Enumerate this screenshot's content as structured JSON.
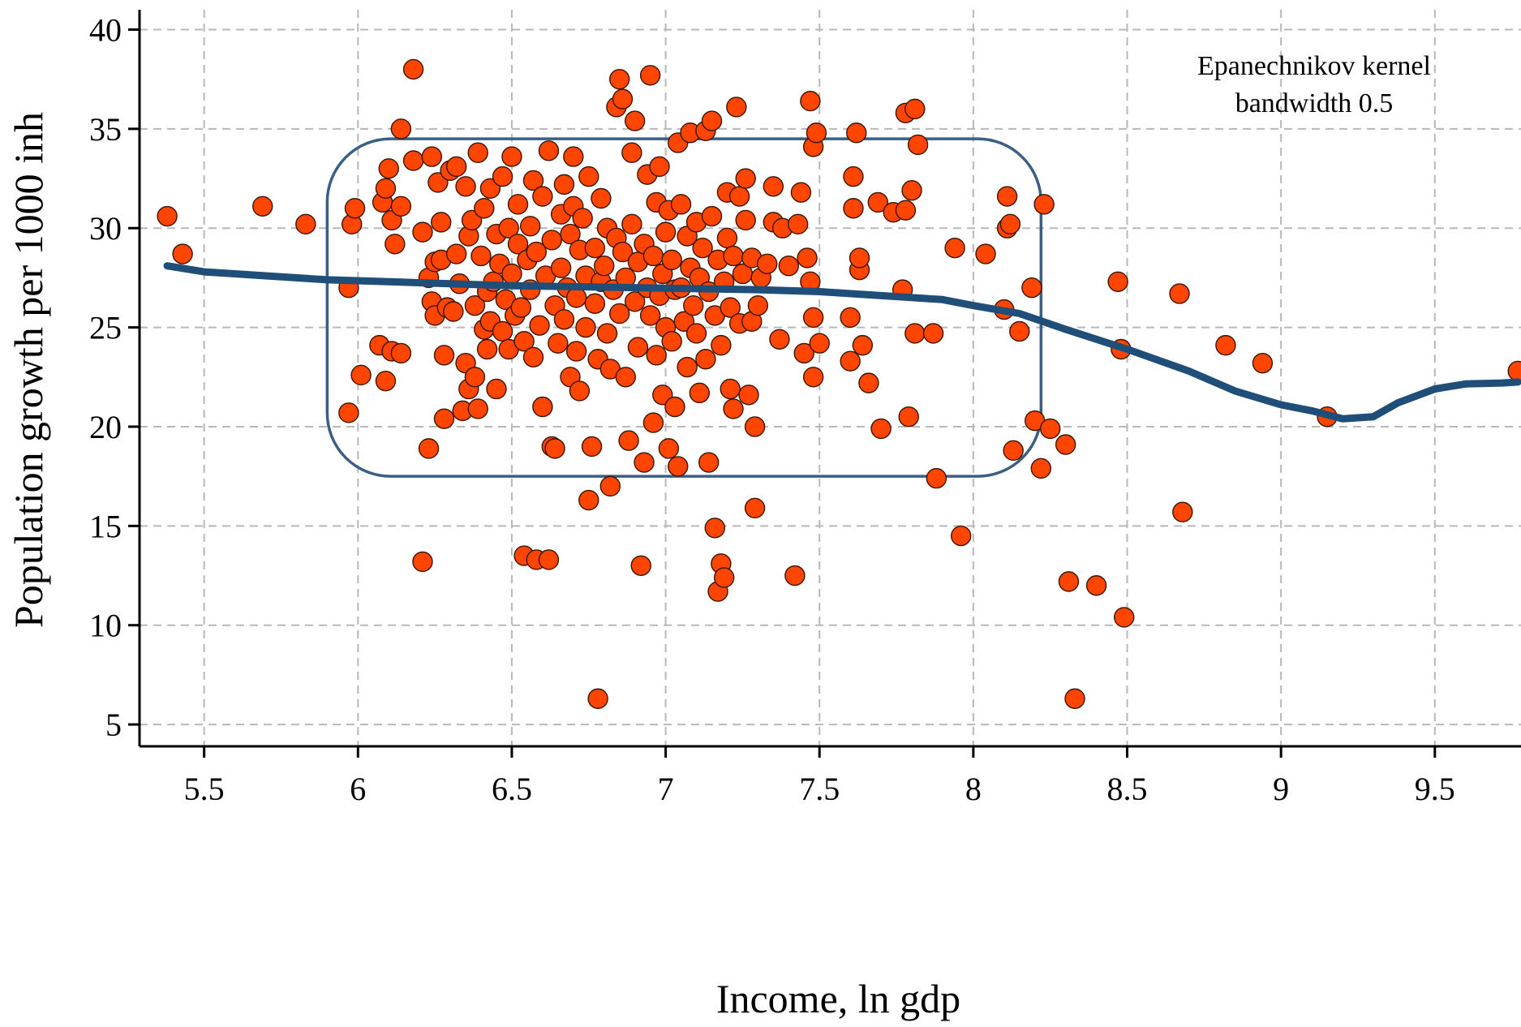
{
  "chart_data": {
    "type": "scatter",
    "title": "",
    "xlabel": "Income, ln gdp",
    "ylabel": "Population growth per 1000 inh",
    "xlim": [
      5.29,
      9.78
    ],
    "ylim": [
      3.9,
      41.0
    ],
    "x_ticks": [
      5.5,
      6,
      6.5,
      7,
      7.5,
      8,
      8.5,
      9,
      9.5
    ],
    "x_tick_labels": [
      "5.5",
      "6",
      "6.5",
      "7",
      "7.5",
      "8",
      "8.5",
      "9",
      "9.5"
    ],
    "y_ticks": [
      5,
      10,
      15,
      20,
      25,
      30,
      35,
      40
    ],
    "y_tick_labels": [
      "5",
      "10",
      "15",
      "20",
      "25",
      "30",
      "35",
      "40"
    ],
    "grid": true,
    "legend": "none",
    "annotation": {
      "lines": [
        "Epanechnikov kernel",
        "bandwidth 0.5"
      ],
      "placement": "top-right"
    },
    "highlight_region": {
      "x": [
        5.9,
        8.22
      ],
      "y": [
        17.5,
        34.5
      ],
      "shape": "rounded-rectangle"
    },
    "colors": {
      "points_fill": "#FF4500",
      "points_stroke": "#3a1505",
      "smooth_line": "#1F4E79",
      "highlight_box": "#3B5E85",
      "grid": "#b8b8b8",
      "axis": "#000000"
    },
    "series": [
      {
        "type": "scatter",
        "points": [
          [
            5.38,
            30.6
          ],
          [
            5.43,
            28.7
          ],
          [
            5.69,
            31.1
          ],
          [
            5.83,
            30.2
          ],
          [
            5.97,
            27.0
          ],
          [
            5.97,
            20.7
          ],
          [
            5.98,
            30.2
          ],
          [
            5.99,
            31.0
          ],
          [
            6.01,
            22.6
          ],
          [
            6.07,
            24.1
          ],
          [
            6.08,
            31.3
          ],
          [
            6.09,
            32.0
          ],
          [
            6.09,
            22.3
          ],
          [
            6.1,
            33.0
          ],
          [
            6.11,
            23.8
          ],
          [
            6.11,
            30.4
          ],
          [
            6.12,
            29.2
          ],
          [
            6.14,
            23.7
          ],
          [
            6.14,
            31.1
          ],
          [
            6.14,
            35.0
          ],
          [
            6.18,
            38.0
          ],
          [
            6.18,
            33.4
          ],
          [
            6.21,
            13.2
          ],
          [
            6.21,
            29.8
          ],
          [
            6.23,
            18.9
          ],
          [
            6.23,
            27.5
          ],
          [
            6.24,
            33.6
          ],
          [
            6.24,
            26.3
          ],
          [
            6.25,
            25.6
          ],
          [
            6.25,
            28.3
          ],
          [
            6.26,
            32.3
          ],
          [
            6.27,
            28.4
          ],
          [
            6.27,
            30.3
          ],
          [
            6.28,
            23.6
          ],
          [
            6.28,
            20.4
          ],
          [
            6.29,
            26.0
          ],
          [
            6.3,
            32.9
          ],
          [
            6.31,
            25.8
          ],
          [
            6.32,
            33.1
          ],
          [
            6.32,
            28.7
          ],
          [
            6.33,
            27.2
          ],
          [
            6.34,
            20.8
          ],
          [
            6.35,
            23.2
          ],
          [
            6.35,
            32.1
          ],
          [
            6.36,
            21.9
          ],
          [
            6.36,
            29.6
          ],
          [
            6.37,
            30.4
          ],
          [
            6.38,
            26.1
          ],
          [
            6.38,
            22.5
          ],
          [
            6.39,
            33.8
          ],
          [
            6.39,
            20.9
          ],
          [
            6.4,
            28.6
          ],
          [
            6.41,
            24.9
          ],
          [
            6.41,
            31.0
          ],
          [
            6.42,
            26.8
          ],
          [
            6.42,
            23.9
          ],
          [
            6.43,
            32.0
          ],
          [
            6.43,
            25.3
          ],
          [
            6.44,
            27.3
          ],
          [
            6.45,
            29.7
          ],
          [
            6.45,
            21.9
          ],
          [
            6.46,
            28.2
          ],
          [
            6.47,
            32.6
          ],
          [
            6.47,
            24.8
          ],
          [
            6.48,
            26.4
          ],
          [
            6.49,
            30.0
          ],
          [
            6.49,
            23.9
          ],
          [
            6.5,
            33.6
          ],
          [
            6.5,
            27.7
          ],
          [
            6.51,
            25.6
          ],
          [
            6.52,
            29.2
          ],
          [
            6.52,
            31.2
          ],
          [
            6.53,
            26.0
          ],
          [
            6.54,
            24.3
          ],
          [
            6.54,
            13.5
          ],
          [
            6.55,
            28.4
          ],
          [
            6.56,
            30.1
          ],
          [
            6.56,
            26.9
          ],
          [
            6.57,
            32.4
          ],
          [
            6.57,
            23.5
          ],
          [
            6.58,
            13.3
          ],
          [
            6.58,
            28.8
          ],
          [
            6.59,
            25.1
          ],
          [
            6.6,
            21.0
          ],
          [
            6.6,
            31.6
          ],
          [
            6.61,
            27.6
          ],
          [
            6.62,
            13.3
          ],
          [
            6.62,
            33.9
          ],
          [
            6.63,
            19.0
          ],
          [
            6.63,
            29.4
          ],
          [
            6.64,
            26.1
          ],
          [
            6.64,
            18.9
          ],
          [
            6.65,
            24.2
          ],
          [
            6.66,
            30.7
          ],
          [
            6.66,
            28.0
          ],
          [
            6.67,
            32.2
          ],
          [
            6.67,
            25.4
          ],
          [
            6.68,
            27.0
          ],
          [
            6.69,
            29.7
          ],
          [
            6.69,
            22.5
          ],
          [
            6.7,
            33.6
          ],
          [
            6.7,
            31.1
          ],
          [
            6.71,
            26.5
          ],
          [
            6.71,
            23.8
          ],
          [
            6.72,
            28.9
          ],
          [
            6.72,
            21.8
          ],
          [
            6.73,
            30.5
          ],
          [
            6.74,
            25.0
          ],
          [
            6.74,
            27.6
          ],
          [
            6.75,
            32.6
          ],
          [
            6.75,
            16.3
          ],
          [
            6.76,
            19.0
          ],
          [
            6.77,
            29.0
          ],
          [
            6.77,
            26.2
          ],
          [
            6.78,
            6.3
          ],
          [
            6.78,
            23.4
          ],
          [
            6.79,
            31.5
          ],
          [
            6.79,
            27.3
          ],
          [
            6.8,
            28.1
          ],
          [
            6.81,
            24.7
          ],
          [
            6.81,
            30.0
          ],
          [
            6.82,
            17.0
          ],
          [
            6.82,
            22.9
          ],
          [
            6.83,
            26.9
          ],
          [
            6.84,
            36.1
          ],
          [
            6.84,
            29.5
          ],
          [
            6.85,
            37.5
          ],
          [
            6.85,
            25.7
          ],
          [
            6.86,
            28.8
          ],
          [
            6.86,
            36.5
          ],
          [
            6.87,
            27.5
          ],
          [
            6.87,
            22.5
          ],
          [
            6.88,
            19.3
          ],
          [
            6.89,
            33.8
          ],
          [
            6.89,
            30.2
          ],
          [
            6.9,
            35.4
          ],
          [
            6.9,
            26.3
          ],
          [
            6.91,
            28.3
          ],
          [
            6.91,
            24.0
          ],
          [
            6.92,
            13.0
          ],
          [
            6.93,
            29.2
          ],
          [
            6.93,
            18.2
          ],
          [
            6.94,
            27.0
          ],
          [
            6.94,
            32.7
          ],
          [
            6.95,
            37.7
          ],
          [
            6.95,
            25.6
          ],
          [
            6.96,
            20.2
          ],
          [
            6.96,
            28.6
          ],
          [
            6.97,
            31.3
          ],
          [
            6.97,
            23.6
          ],
          [
            6.98,
            26.6
          ],
          [
            6.98,
            33.1
          ],
          [
            6.99,
            27.7
          ],
          [
            6.99,
            21.6
          ],
          [
            7.0,
            29.8
          ],
          [
            7.0,
            25.0
          ],
          [
            7.01,
            30.9
          ],
          [
            7.01,
            18.9
          ],
          [
            7.02,
            24.3
          ],
          [
            7.02,
            28.4
          ],
          [
            7.03,
            21.0
          ],
          [
            7.03,
            26.9
          ],
          [
            7.04,
            18.0
          ],
          [
            7.04,
            34.3
          ],
          [
            7.05,
            31.2
          ],
          [
            7.05,
            27.0
          ],
          [
            7.06,
            25.3
          ],
          [
            7.07,
            29.6
          ],
          [
            7.07,
            23.0
          ],
          [
            7.08,
            34.8
          ],
          [
            7.08,
            28.0
          ],
          [
            7.09,
            26.1
          ],
          [
            7.1,
            30.3
          ],
          [
            7.1,
            24.7
          ],
          [
            7.11,
            21.7
          ],
          [
            7.11,
            27.5
          ],
          [
            7.12,
            29.0
          ],
          [
            7.13,
            23.4
          ],
          [
            7.13,
            34.9
          ],
          [
            7.14,
            26.8
          ],
          [
            7.14,
            18.2
          ],
          [
            7.15,
            30.6
          ],
          [
            7.15,
            35.4
          ],
          [
            7.16,
            25.6
          ],
          [
            7.16,
            14.9
          ],
          [
            7.17,
            28.4
          ],
          [
            7.17,
            11.7
          ],
          [
            7.18,
            13.1
          ],
          [
            7.18,
            24.1
          ],
          [
            7.19,
            12.4
          ],
          [
            7.19,
            27.3
          ],
          [
            7.2,
            31.8
          ],
          [
            7.2,
            29.5
          ],
          [
            7.21,
            21.9
          ],
          [
            7.21,
            26.0
          ],
          [
            7.22,
            28.6
          ],
          [
            7.22,
            20.9
          ],
          [
            7.23,
            36.1
          ],
          [
            7.24,
            25.2
          ],
          [
            7.24,
            31.6
          ],
          [
            7.25,
            27.7
          ],
          [
            7.26,
            30.4
          ],
          [
            7.26,
            32.5
          ],
          [
            7.27,
            21.6
          ],
          [
            7.28,
            25.3
          ],
          [
            7.28,
            28.5
          ],
          [
            7.29,
            15.9
          ],
          [
            7.29,
            20.0
          ],
          [
            7.3,
            26.1
          ],
          [
            7.31,
            27.5
          ],
          [
            7.33,
            28.2
          ],
          [
            7.35,
            30.3
          ],
          [
            7.35,
            32.1
          ],
          [
            7.37,
            24.4
          ],
          [
            7.38,
            30.0
          ],
          [
            7.4,
            28.1
          ],
          [
            7.42,
            12.5
          ],
          [
            7.43,
            30.2
          ],
          [
            7.44,
            31.8
          ],
          [
            7.45,
            23.7
          ],
          [
            7.46,
            28.5
          ],
          [
            7.47,
            36.4
          ],
          [
            7.47,
            27.3
          ],
          [
            7.48,
            25.5
          ],
          [
            7.48,
            34.1
          ],
          [
            7.48,
            22.5
          ],
          [
            7.49,
            34.8
          ],
          [
            7.5,
            24.2
          ],
          [
            7.6,
            25.5
          ],
          [
            7.6,
            23.3
          ],
          [
            7.61,
            31.0
          ],
          [
            7.61,
            32.6
          ],
          [
            7.62,
            34.8
          ],
          [
            7.63,
            27.9
          ],
          [
            7.63,
            28.5
          ],
          [
            7.64,
            24.1
          ],
          [
            7.66,
            22.2
          ],
          [
            7.69,
            31.3
          ],
          [
            7.7,
            19.9
          ],
          [
            7.74,
            30.8
          ],
          [
            7.77,
            26.9
          ],
          [
            7.78,
            35.8
          ],
          [
            7.78,
            30.9
          ],
          [
            7.79,
            20.5
          ],
          [
            7.8,
            31.9
          ],
          [
            7.81,
            24.7
          ],
          [
            7.81,
            36.0
          ],
          [
            7.82,
            34.2
          ],
          [
            7.87,
            24.7
          ],
          [
            7.88,
            17.4
          ],
          [
            7.94,
            29.0
          ],
          [
            7.96,
            14.5
          ],
          [
            8.04,
            28.7
          ],
          [
            8.1,
            25.9
          ],
          [
            8.11,
            30.0
          ],
          [
            8.11,
            31.6
          ],
          [
            8.12,
            30.2
          ],
          [
            8.13,
            18.8
          ],
          [
            8.15,
            24.8
          ],
          [
            8.19,
            27.0
          ],
          [
            8.2,
            20.3
          ],
          [
            8.22,
            17.9
          ],
          [
            8.23,
            31.2
          ],
          [
            8.25,
            19.9
          ],
          [
            8.3,
            19.1
          ],
          [
            8.31,
            12.2
          ],
          [
            8.33,
            6.3
          ],
          [
            8.4,
            12.0
          ],
          [
            8.47,
            27.3
          ],
          [
            8.48,
            23.9
          ],
          [
            8.49,
            10.4
          ],
          [
            8.67,
            26.7
          ],
          [
            8.68,
            15.7
          ],
          [
            8.82,
            24.1
          ],
          [
            8.94,
            23.2
          ],
          [
            9.15,
            20.5
          ],
          [
            9.77,
            22.8
          ]
        ]
      },
      {
        "type": "line",
        "points": [
          [
            5.38,
            28.1
          ],
          [
            5.5,
            27.8
          ],
          [
            5.7,
            27.6
          ],
          [
            5.9,
            27.4
          ],
          [
            6.1,
            27.3
          ],
          [
            6.3,
            27.2
          ],
          [
            6.5,
            27.1
          ],
          [
            6.7,
            27.05
          ],
          [
            6.9,
            27.0
          ],
          [
            7.1,
            26.95
          ],
          [
            7.3,
            26.9
          ],
          [
            7.5,
            26.8
          ],
          [
            7.7,
            26.6
          ],
          [
            7.9,
            26.4
          ],
          [
            8.0,
            26.1
          ],
          [
            8.15,
            25.7
          ],
          [
            8.3,
            24.9
          ],
          [
            8.5,
            23.9
          ],
          [
            8.7,
            22.8
          ],
          [
            8.85,
            21.8
          ],
          [
            9.0,
            21.1
          ],
          [
            9.1,
            20.8
          ],
          [
            9.2,
            20.4
          ],
          [
            9.3,
            20.5
          ],
          [
            9.38,
            21.2
          ],
          [
            9.5,
            21.9
          ],
          [
            9.6,
            22.15
          ],
          [
            9.72,
            22.2
          ],
          [
            9.77,
            22.25
          ]
        ]
      }
    ]
  }
}
